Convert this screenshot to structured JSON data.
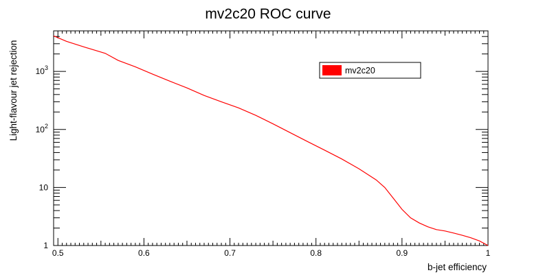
{
  "chart_data": {
    "type": "line",
    "title": "mv2c20 ROC curve",
    "xlabel": "b-jet efficiency",
    "ylabel": "Light-flavour jet rejection",
    "xlim": [
      0.495,
      1.0
    ],
    "ylim": [
      1,
      5000
    ],
    "yscale": "log",
    "grid": false,
    "legend_position": "top-right",
    "x_ticks": [
      {
        "value": 0.5,
        "label": "0.5"
      },
      {
        "value": 0.6,
        "label": "0.6"
      },
      {
        "value": 0.7,
        "label": "0.7"
      },
      {
        "value": 0.8,
        "label": "0.8"
      },
      {
        "value": 0.9,
        "label": "0.9"
      },
      {
        "value": 1.0,
        "label": "1"
      }
    ],
    "y_ticks": [
      {
        "value": 1,
        "base": "1",
        "exp": ""
      },
      {
        "value": 10,
        "base": "10",
        "exp": ""
      },
      {
        "value": 100,
        "base": "10",
        "exp": "2"
      },
      {
        "value": 1000,
        "base": "10",
        "exp": "3"
      }
    ],
    "series": [
      {
        "name": "mv2c20",
        "color": "#ff0000",
        "x": [
          0.495,
          0.51,
          0.53,
          0.555,
          0.57,
          0.59,
          0.61,
          0.63,
          0.65,
          0.67,
          0.69,
          0.71,
          0.73,
          0.75,
          0.77,
          0.79,
          0.81,
          0.83,
          0.85,
          0.87,
          0.88,
          0.89,
          0.9,
          0.91,
          0.92,
          0.93,
          0.94,
          0.95,
          0.96,
          0.97,
          0.98,
          0.99,
          1.0
        ],
        "y": [
          4100,
          3300,
          2650,
          2050,
          1550,
          1200,
          900,
          680,
          520,
          385,
          300,
          235,
          175,
          125,
          88,
          62,
          44,
          31,
          21,
          13.5,
          10,
          6.5,
          4.2,
          3.0,
          2.45,
          2.1,
          1.88,
          1.78,
          1.64,
          1.5,
          1.36,
          1.2,
          1.0
        ]
      }
    ]
  }
}
